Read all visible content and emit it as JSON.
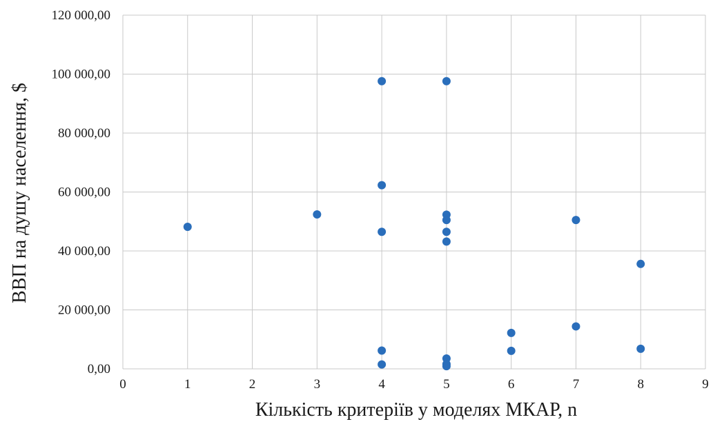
{
  "chart_data": {
    "type": "scatter",
    "title": "",
    "xlabel": "Кількість критеріїв у моделях МКАР, n",
    "ylabel": "ВВП на душу населення, $",
    "xlim": [
      0,
      9
    ],
    "ylim": [
      0,
      120000
    ],
    "x_ticks": [
      0,
      1,
      2,
      3,
      4,
      5,
      6,
      7,
      8,
      9
    ],
    "y_ticks": [
      0,
      20000,
      40000,
      60000,
      80000,
      100000,
      120000
    ],
    "x_tick_labels": [
      "0",
      "1",
      "2",
      "3",
      "4",
      "5",
      "6",
      "7",
      "8",
      "9"
    ],
    "y_tick_labels": [
      "0,00",
      "20 000,00",
      "40 000,00",
      "60 000,00",
      "80 000,00",
      "100 000,00",
      "120 000,00"
    ],
    "grid": true,
    "legend": "none",
    "marker_color": "#2a6ebb",
    "series": [
      {
        "points": [
          {
            "x": 1,
            "y": 48200
          },
          {
            "x": 3,
            "y": 52400
          },
          {
            "x": 4,
            "y": 97600
          },
          {
            "x": 4,
            "y": 62300
          },
          {
            "x": 4,
            "y": 46500
          },
          {
            "x": 4,
            "y": 6200
          },
          {
            "x": 4,
            "y": 1500
          },
          {
            "x": 5,
            "y": 97600
          },
          {
            "x": 5,
            "y": 52300
          },
          {
            "x": 5,
            "y": 50500
          },
          {
            "x": 5,
            "y": 46500
          },
          {
            "x": 5,
            "y": 43200
          },
          {
            "x": 5,
            "y": 3500
          },
          {
            "x": 5,
            "y": 1600
          },
          {
            "x": 5,
            "y": 900
          },
          {
            "x": 6,
            "y": 12200
          },
          {
            "x": 6,
            "y": 6100
          },
          {
            "x": 7,
            "y": 50500
          },
          {
            "x": 7,
            "y": 14400
          },
          {
            "x": 8,
            "y": 35600
          },
          {
            "x": 8,
            "y": 6800
          }
        ]
      }
    ]
  }
}
